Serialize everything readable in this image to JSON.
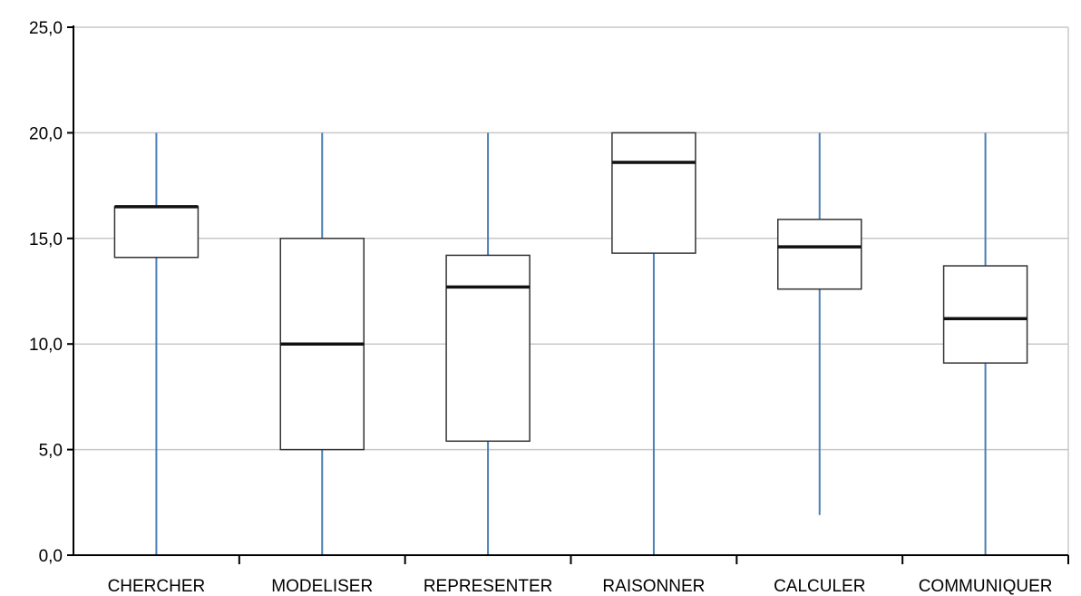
{
  "chart_data": {
    "type": "boxplot",
    "title": "",
    "xlabel": "",
    "ylabel": "",
    "ylim": [
      0,
      25
    ],
    "y_ticks": [
      "0,0",
      "5,0",
      "10,0",
      "15,0",
      "20,0",
      "25,0"
    ],
    "y_tick_values": [
      0,
      5,
      10,
      15,
      20,
      25
    ],
    "grid": "horizontal",
    "categories": [
      "CHERCHER",
      "MODELISER",
      "REPRESENTER",
      "RAISONNER",
      "CALCULER",
      "COMMUNIQUER"
    ],
    "boxes": [
      {
        "category": "CHERCHER",
        "min": 0,
        "q1": 14.1,
        "median": 16.5,
        "q3": 16.5,
        "max": 20
      },
      {
        "category": "MODELISER",
        "min": 0,
        "q1": 5.0,
        "median": 10.0,
        "q3": 15.0,
        "max": 20
      },
      {
        "category": "REPRESENTER",
        "min": 0,
        "q1": 5.4,
        "median": 12.7,
        "q3": 14.2,
        "max": 20
      },
      {
        "category": "RAISONNER",
        "min": 0,
        "q1": 14.3,
        "median": 18.6,
        "q3": 20.0,
        "max": 20
      },
      {
        "category": "CALCULER",
        "min": 1.9,
        "q1": 12.6,
        "median": 14.6,
        "q3": 15.9,
        "max": 20
      },
      {
        "category": "COMMUNIQUER",
        "min": 0,
        "q1": 9.1,
        "median": 11.2,
        "q3": 13.7,
        "max": 20
      }
    ],
    "colors": {
      "whisker": "#4a7fb5",
      "box_border": "#333333",
      "median": "#111111",
      "grid": "#c8c8c8",
      "axis": "#000000"
    }
  }
}
